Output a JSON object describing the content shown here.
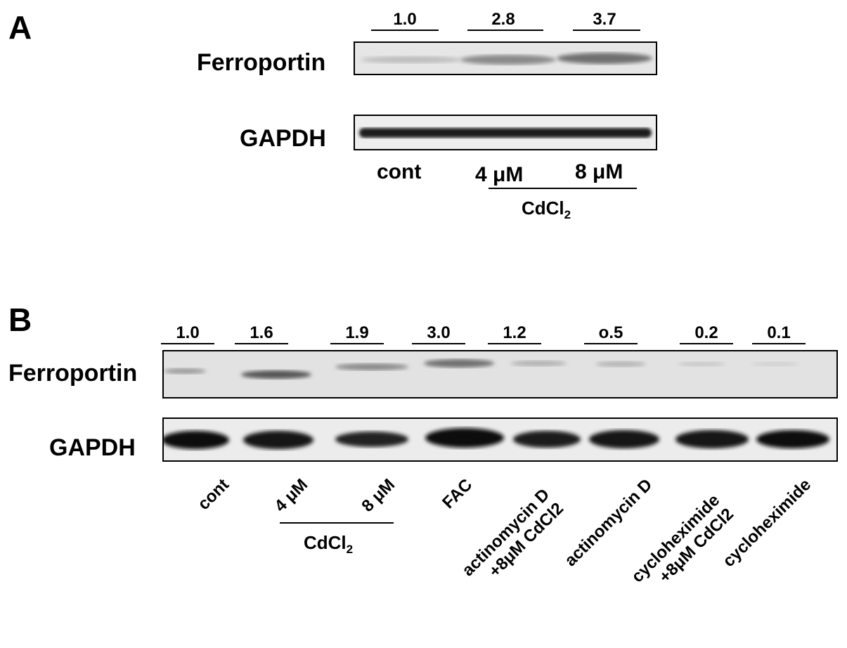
{
  "panelA": {
    "letter": "A",
    "quant": [
      "1.0",
      "2.8",
      "3.7"
    ],
    "row1_label": "Ferroportin",
    "row2_label": "GAPDH",
    "lanes": [
      "cont",
      "4 μM",
      "8 μM"
    ],
    "treatment": "CdCl",
    "treatment_sub": "2"
  },
  "panelB": {
    "letter": "B",
    "quant": [
      "1.0",
      "1.6",
      "1.9",
      "3.0",
      "1.2",
      "o.5",
      "0.2",
      "0.1"
    ],
    "row1_label": "Ferroportin",
    "row2_label": "GAPDH",
    "lanes": [
      "cont",
      "4 μM",
      "8 μM",
      "FAC",
      "actinomycin D\n+8μM CdCl2",
      "actinomycin D",
      "cycloheximide\n+8μM CdCl2",
      "cycloheximide"
    ],
    "treatment": "CdCl",
    "treatment_sub": "2"
  }
}
